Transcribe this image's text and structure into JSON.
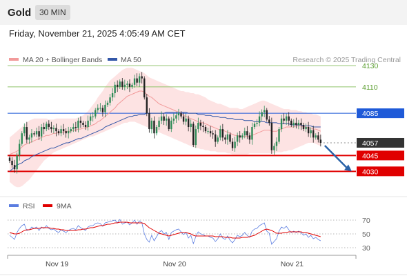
{
  "header": {
    "title": "Gold",
    "timeframe": "30 MIN"
  },
  "datetime": "Friday, November 21, 2025 4:05:49 AM CET",
  "legend": {
    "bb_label": "MA 20 + Bollinger Bands",
    "ma50_label": "MA 50",
    "credit": "Research © 2025 Trading Central",
    "rsi_label": "RSI",
    "rsi9_label": "9MA"
  },
  "colors": {
    "support": "#e00000",
    "resistance": "#8fc46a",
    "pivot": "#1f5ad8",
    "current": "#333333",
    "bb_fill": "#fde3e3",
    "ma20": "#f29a9a",
    "ma50": "#3357a8",
    "up_candle": "#2e8b57",
    "down_candle": "#222222",
    "rsi": "#5b7de0",
    "rsi_ma": "#e00000",
    "arrow": "#2a63a8"
  },
  "chart_data": [
    {
      "type": "candlestick",
      "title": "Gold",
      "timeframe": "30 MIN",
      "y_axis_side": "right",
      "ylim": [
        4008,
        4138
      ],
      "x_ticks": [
        {
          "label": "Nov 19",
          "idx": 20
        },
        {
          "label": "Nov 20",
          "idx": 68
        },
        {
          "label": "Nov 21",
          "idx": 116
        }
      ],
      "levels": [
        {
          "value": 4130,
          "label": "4130",
          "kind": "resistance"
        },
        {
          "value": 4110,
          "label": "4110",
          "kind": "resistance"
        },
        {
          "value": 4085,
          "label": "4085",
          "kind": "pivot"
        },
        {
          "value": 4057,
          "label": "4057",
          "kind": "current"
        },
        {
          "value": 4045,
          "label": "4045",
          "kind": "support"
        },
        {
          "value": 4030,
          "label": "4030",
          "kind": "support"
        }
      ],
      "forecast_arrow": {
        "from": 4057,
        "to": 4030
      },
      "close": [
        4040,
        4036,
        4032,
        4045,
        4056,
        4066,
        4072,
        4060,
        4062,
        4066,
        4065,
        4068,
        4063,
        4072,
        4070,
        4075,
        4072,
        4070,
        4071,
        4068,
        4066,
        4070,
        4068,
        4066,
        4068,
        4070,
        4072,
        4071,
        4078,
        4076,
        4074,
        4072,
        4078,
        4082,
        4082,
        4088,
        4090,
        4090,
        4086,
        4093,
        4095,
        4100,
        4104,
        4112,
        4110,
        4115,
        4110,
        4112,
        4113,
        4110,
        4112,
        4118,
        4114,
        4120,
        4118,
        4100,
        4085,
        4070,
        4078,
        4066,
        4072,
        4078,
        4082,
        4078,
        4080,
        4070,
        4078,
        4080,
        4083,
        4085,
        4082,
        4077,
        4080,
        4072,
        4075,
        4055,
        4070,
        4076,
        4073,
        4072,
        4068,
        4068,
        4066,
        4065,
        4058,
        4062,
        4070,
        4062,
        4060,
        4065,
        4058,
        4052,
        4058,
        4064,
        4062,
        4064,
        4068,
        4064,
        4060,
        4072,
        4075,
        4076,
        4082,
        4086,
        4088,
        4079,
        4076,
        4050,
        4054,
        4058,
        4070,
        4080,
        4078,
        4082,
        4078,
        4074,
        4076,
        4074,
        4076,
        4074,
        4070,
        4072,
        4066,
        4069,
        4062,
        4064,
        4060,
        4057
      ],
      "ma20": [
        4046,
        4047,
        4048,
        4049,
        4051,
        4053,
        4055,
        4056,
        4057,
        4058,
        4059,
        4060,
        4061,
        4062,
        4063,
        4064,
        4064,
        4065,
        4066,
        4066,
        4067,
        4067,
        4067,
        4068,
        4068,
        4068,
        4069,
        4069,
        4070,
        4070,
        4071,
        4071,
        4072,
        4073,
        4074,
        4075,
        4077,
        4078,
        4080,
        4082,
        4084,
        4086,
        4088,
        4090,
        4093,
        4095,
        4097,
        4099,
        4101,
        4102,
        4103,
        4104,
        4105,
        4106,
        4106,
        4105,
        4103,
        4101,
        4100,
        4098,
        4096,
        4094,
        4093,
        4092,
        4091,
        4090,
        4089,
        4088,
        4087,
        4086,
        4085,
        4083,
        4082,
        4081,
        4080,
        4079,
        4078,
        4077,
        4076,
        4076,
        4075,
        4074,
        4073,
        4072,
        4071,
        4070,
        4069,
        4069,
        4068,
        4067,
        4066,
        4065,
        4064,
        4064,
        4063,
        4063,
        4063,
        4063,
        4063,
        4064,
        4065,
        4066,
        4067,
        4068,
        4069,
        4069,
        4069,
        4068,
        4068,
        4068,
        4069,
        4070,
        4071,
        4072,
        4072,
        4072,
        4072,
        4073,
        4073,
        4073,
        4072,
        4072,
        4071,
        4071,
        4070,
        4070,
        4069,
        4068
      ],
      "bb_upper": [
        4062,
        4064,
        4066,
        4068,
        4070,
        4072,
        4074,
        4076,
        4078,
        4079,
        4080,
        4080,
        4080,
        4080,
        4080,
        4080,
        4079,
        4079,
        4079,
        4080,
        4080,
        4080,
        4080,
        4080,
        4080,
        4080,
        4080,
        4080,
        4081,
        4082,
        4083,
        4085,
        4087,
        4090,
        4093,
        4096,
        4100,
        4103,
        4106,
        4110,
        4113,
        4116,
        4118,
        4120,
        4122,
        4124,
        4126,
        4127,
        4128,
        4128,
        4128,
        4127,
        4126,
        4125,
        4124,
        4123,
        4121,
        4119,
        4118,
        4117,
        4116,
        4115,
        4114,
        4113,
        4112,
        4111,
        4110,
        4109,
        4108,
        4107,
        4106,
        4106,
        4105,
        4105,
        4104,
        4104,
        4103,
        4103,
        4102,
        4101,
        4100,
        4098,
        4097,
        4096,
        4095,
        4094,
        4094,
        4093,
        4092,
        4091,
        4090,
        4090,
        4090,
        4090,
        4089,
        4089,
        4090,
        4091,
        4092,
        4093,
        4094,
        4095,
        4096,
        4097,
        4097,
        4096,
        4095,
        4094,
        4093,
        4092,
        4091,
        4090,
        4089,
        4089,
        4089,
        4088,
        4088,
        4088,
        4087,
        4087,
        4086,
        4086,
        4085,
        4085,
        4084,
        4084,
        4083,
        4082
      ],
      "bb_lower": [
        4020,
        4018,
        4016,
        4015,
        4015,
        4016,
        4018,
        4020,
        4022,
        4025,
        4028,
        4031,
        4034,
        4037,
        4040,
        4042,
        4044,
        4046,
        4048,
        4049,
        4050,
        4051,
        4052,
        4053,
        4054,
        4055,
        4056,
        4057,
        4058,
        4059,
        4060,
        4061,
        4062,
        4063,
        4063,
        4064,
        4065,
        4066,
        4067,
        4068,
        4069,
        4070,
        4071,
        4072,
        4073,
        4074,
        4075,
        4076,
        4076,
        4077,
        4077,
        4077,
        4076,
        4075,
        4074,
        4073,
        4072,
        4071,
        4070,
        4069,
        4068,
        4067,
        4066,
        4065,
        4064,
        4063,
        4062,
        4061,
        4060,
        4059,
        4058,
        4057,
        4056,
        4055,
        4054,
        4053,
        4052,
        4052,
        4051,
        4051,
        4050,
        4050,
        4049,
        4049,
        4049,
        4048,
        4048,
        4048,
        4048,
        4047,
        4047,
        4046,
        4046,
        4046,
        4046,
        4046,
        4046,
        4046,
        4047,
        4047,
        4047,
        4047,
        4047,
        4047,
        4047,
        4047,
        4047,
        4047,
        4047,
        4048,
        4048,
        4048,
        4049,
        4049,
        4050,
        4050,
        4051,
        4052,
        4053,
        4054,
        4055,
        4056,
        4057,
        4057,
        4057,
        4056,
        4055,
        4054
      ],
      "ma50": [
        4030,
        4032,
        4034,
        4036,
        4037,
        4038,
        4040,
        4041,
        4042,
        4044,
        4045,
        4046,
        4047,
        4048,
        4049,
        4050,
        4051,
        4052,
        4052,
        4053,
        4054,
        4055,
        4056,
        4057,
        4057,
        4058,
        4059,
        4060,
        4061,
        4061,
        4062,
        4063,
        4064,
        4065,
        4066,
        4067,
        4068,
        4069,
        4070,
        4072,
        4073,
        4074,
        4075,
        4076,
        4077,
        4078,
        4079,
        4080,
        4081,
        4082,
        4082,
        4083,
        4083,
        4084,
        4084,
        4084,
        4085,
        4085,
        4085,
        4085,
        4085,
        4085,
        4085,
        4085,
        4086,
        4086,
        4086,
        4086,
        4086,
        4086,
        4086,
        4086,
        4086,
        4085,
        4085,
        4085,
        4085,
        4084,
        4084,
        4084,
        4083,
        4083,
        4083,
        4082,
        4082,
        4082,
        4081,
        4081,
        4081,
        4080,
        4080,
        4080,
        4079,
        4079,
        4079,
        4079,
        4078,
        4078,
        4078,
        4078,
        4077,
        4077,
        4077,
        4077,
        4077,
        4076,
        4076,
        4076,
        4076,
        4076,
        4075,
        4075,
        4075,
        4075,
        4075,
        4074,
        4074,
        4074,
        4074,
        4074,
        4073,
        4073,
        4073,
        4073,
        4072,
        4072,
        4072,
        4072
      ]
    },
    {
      "type": "line",
      "series_names": [
        "RSI",
        "9MA"
      ],
      "ylim": [
        25,
        75
      ],
      "y_ticks": [
        30,
        50,
        70
      ],
      "rsi": [
        48,
        45,
        42,
        52,
        58,
        62,
        64,
        55,
        56,
        60,
        58,
        60,
        55,
        60,
        58,
        62,
        58,
        56,
        57,
        54,
        52,
        56,
        54,
        52,
        55,
        57,
        58,
        56,
        62,
        59,
        57,
        55,
        60,
        62,
        62,
        65,
        66,
        65,
        61,
        66,
        67,
        68,
        69,
        70,
        66,
        71,
        64,
        66,
        67,
        63,
        66,
        70,
        64,
        69,
        66,
        50,
        42,
        38,
        48,
        40,
        46,
        52,
        55,
        50,
        52,
        42,
        52,
        54,
        56,
        57,
        53,
        49,
        52,
        44,
        48,
        36,
        46,
        53,
        50,
        49,
        47,
        47,
        45,
        44,
        39,
        43,
        50,
        44,
        42,
        47,
        41,
        37,
        42,
        48,
        46,
        48,
        52,
        48,
        45,
        54,
        57,
        58,
        62,
        64,
        66,
        54,
        51,
        35,
        39,
        43,
        54,
        60,
        58,
        61,
        56,
        52,
        54,
        52,
        54,
        52,
        48,
        50,
        45,
        48,
        43,
        45,
        42,
        40
      ],
      "rsi_ma": [
        52,
        51,
        50,
        50,
        51,
        53,
        55,
        56,
        56,
        57,
        58,
        58,
        58,
        59,
        59,
        59,
        59,
        58,
        58,
        57,
        57,
        56,
        56,
        55,
        55,
        55,
        55,
        55,
        56,
        56,
        57,
        57,
        58,
        59,
        59,
        60,
        61,
        62,
        62,
        63,
        64,
        64,
        65,
        66,
        66,
        67,
        67,
        67,
        67,
        66,
        66,
        66,
        66,
        66,
        66,
        65,
        62,
        59,
        57,
        55,
        53,
        51,
        50,
        49,
        48,
        47,
        48,
        49,
        50,
        51,
        52,
        52,
        52,
        51,
        50,
        48,
        47,
        47,
        47,
        47,
        47,
        47,
        47,
        47,
        46,
        46,
        46,
        46,
        45,
        45,
        45,
        44,
        44,
        44,
        44,
        45,
        45,
        45,
        46,
        47,
        48,
        50,
        52,
        54,
        56,
        57,
        56,
        55,
        53,
        51,
        51,
        51,
        52,
        52,
        53,
        53,
        53,
        53,
        53,
        53,
        52,
        52,
        51,
        50,
        49,
        48,
        47,
        46
      ]
    }
  ]
}
